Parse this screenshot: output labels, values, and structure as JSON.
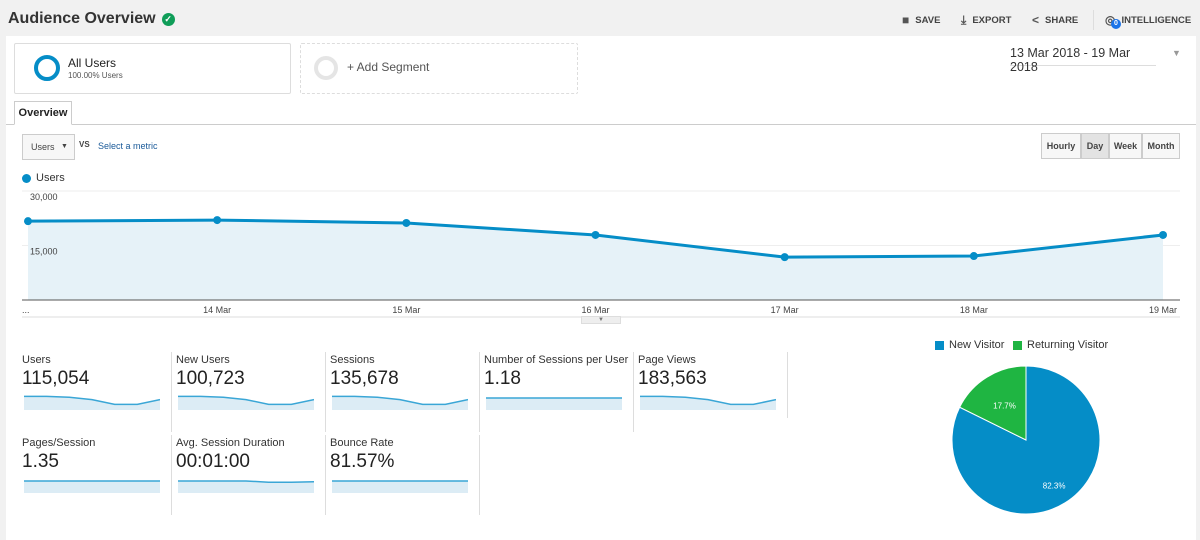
{
  "header": {
    "title": "Audience Overview",
    "actions": [
      {
        "label": "SAVE",
        "icon": "save-icon"
      },
      {
        "label": "EXPORT",
        "icon": "download-icon"
      },
      {
        "label": "SHARE",
        "icon": "share-icon"
      },
      {
        "label": "INTELLIGENCE",
        "icon": "intelligence-icon"
      }
    ],
    "intelligence_badge": "0"
  },
  "segments": {
    "active": {
      "name": "All Users",
      "sub": "100.00% Users"
    },
    "add": "+ Add Segment"
  },
  "date_range": "13 Mar 2018 - 19 Mar 2018",
  "tabs": [
    {
      "label": "Overview"
    }
  ],
  "controls": {
    "metric": "Users",
    "vs": "VS",
    "select_metric": "Select a metric",
    "granularity": [
      "Hourly",
      "Day",
      "Week",
      "Month"
    ],
    "selected": "Day"
  },
  "colors": {
    "accent": "#058dc7",
    "returning": "#1fb542"
  },
  "chart_data": [
    {
      "type": "area",
      "legend": "Users",
      "series": [
        {
          "name": "Users",
          "values": [
            21700,
            22000,
            21200,
            17900,
            11800,
            12100,
            17900
          ]
        }
      ],
      "x": [
        "...",
        "14 Mar",
        "15 Mar",
        "16 Mar",
        "17 Mar",
        "18 Mar",
        "19 Mar"
      ],
      "y_ticks": [
        "30,000",
        "15,000"
      ],
      "ylim": [
        0,
        30000
      ],
      "grid": true
    },
    {
      "type": "pie",
      "legend": [
        "New Visitor",
        "Returning Visitor"
      ],
      "values": [
        82.3,
        17.7
      ],
      "labels": [
        "82.3%",
        "17.7%"
      ],
      "colors": [
        "#058dc7",
        "#1fb542"
      ]
    }
  ],
  "metrics": [
    {
      "label": "Users",
      "value": "115,054",
      "spark": [
        22,
        22,
        21,
        18,
        12,
        12,
        18
      ]
    },
    {
      "label": "New Users",
      "value": "100,723",
      "spark": [
        22,
        22,
        21,
        18,
        12,
        12,
        18
      ]
    },
    {
      "label": "Sessions",
      "value": "135,678",
      "spark": [
        22,
        22,
        21,
        18,
        12,
        12,
        18
      ]
    },
    {
      "label": "Number of Sessions per User",
      "value": "1.18",
      "spark": [
        20,
        20,
        20,
        20,
        20,
        20,
        20
      ]
    },
    {
      "label": "Page Views",
      "value": "183,563",
      "spark": [
        22,
        22,
        21,
        18,
        12,
        12,
        18
      ]
    },
    {
      "label": "Pages/Session",
      "value": "1.35",
      "spark": [
        20,
        20,
        20,
        20,
        20,
        20,
        20
      ]
    },
    {
      "label": "Avg. Session Duration",
      "value": "00:01:00",
      "spark": [
        20,
        20,
        20,
        20,
        18.5,
        18.5,
        19
      ]
    },
    {
      "label": "Bounce Rate",
      "value": "81.57%",
      "spark": [
        20,
        20,
        20,
        20,
        20,
        20,
        20
      ]
    }
  ]
}
